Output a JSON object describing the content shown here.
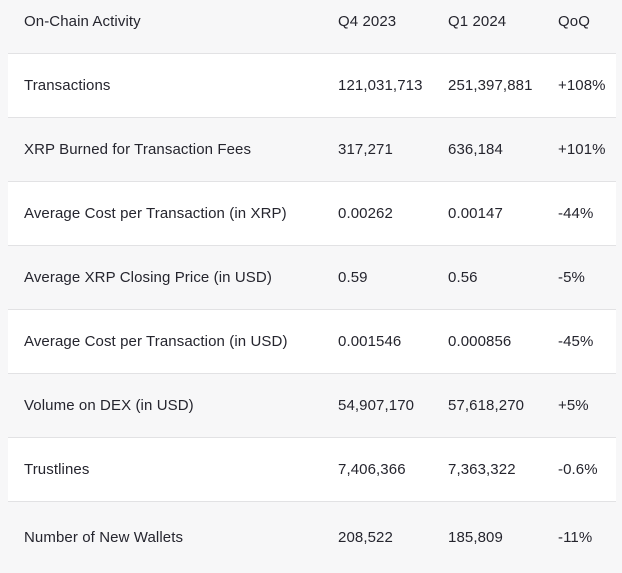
{
  "chart_data": {
    "type": "table",
    "title": "On-Chain Activity",
    "columns": [
      "On-Chain Activity",
      "Q4 2023",
      "Q1 2024",
      "QoQ"
    ],
    "rows": [
      [
        "Transactions",
        "121,031,713",
        "251,397,881",
        "+108%"
      ],
      [
        "XRP Burned for Transaction Fees",
        "317,271",
        "636,184",
        "+101%"
      ],
      [
        "Average Cost per Transaction (in XRP)",
        "0.00262",
        "0.00147",
        "-44%"
      ],
      [
        "Average XRP Closing Price (in USD)",
        "0.59",
        "0.56",
        "-5%"
      ],
      [
        "Average Cost per Transaction (in USD)",
        "0.001546",
        "0.000856",
        "-45%"
      ],
      [
        "Volume on DEX (in USD)",
        "54,907,170",
        "57,618,270",
        "+5%"
      ],
      [
        "Trustlines",
        "7,406,366",
        "7,363,322",
        "-0.6%"
      ],
      [
        "Number of New Wallets",
        "208,522",
        "185,809",
        "-11%"
      ]
    ]
  },
  "table": {
    "header": {
      "label": "On-Chain Activity",
      "q4": "Q4 2023",
      "q1": "Q1 2024",
      "qoq": "QoQ"
    },
    "rows": [
      {
        "label": "Transactions",
        "q4": "121,031,713",
        "q1": "251,397,881",
        "qoq": "+108%"
      },
      {
        "label": "XRP Burned for Transaction Fees",
        "q4": "317,271",
        "q1": "636,184",
        "qoq": "+101%"
      },
      {
        "label": "Average Cost per Transaction (in XRP)",
        "q4": "0.00262",
        "q1": "0.00147",
        "qoq": "-44%"
      },
      {
        "label": "Average XRP Closing Price (in USD)",
        "q4": "0.59",
        "q1": "0.56",
        "qoq": "-5%"
      },
      {
        "label": "Average Cost per Transaction (in USD)",
        "q4": "0.001546",
        "q1": "0.000856",
        "qoq": "-45%"
      },
      {
        "label": "Volume on DEX (in USD)",
        "q4": "54,907,170",
        "q1": "57,618,270",
        "qoq": "+5%"
      },
      {
        "label": "Trustlines",
        "q4": "7,406,366",
        "q1": "7,363,322",
        "qoq": "-0.6%"
      },
      {
        "label": "Number of New Wallets",
        "q4": "208,522",
        "q1": "185,809",
        "qoq": "-11%"
      }
    ]
  },
  "colors": {
    "page_background": "#f7f7f8",
    "row_white": "#ffffff",
    "row_stripe": "#f7f7f8",
    "separator": "#e2e2e4",
    "text": "#25252e"
  }
}
